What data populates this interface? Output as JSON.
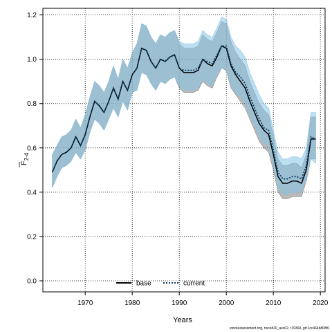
{
  "chart_data": {
    "type": "line",
    "xlabel": "Years",
    "ylabel": "F2-4",
    "ylabel_main": "F",
    "ylabel_sub": "2-4",
    "xlim": [
      1961,
      2021
    ],
    "ylim": [
      -0.05,
      1.23
    ],
    "xticks": [
      1970,
      1980,
      1990,
      2000,
      2010,
      2020
    ],
    "yticks": [
      0.0,
      0.2,
      0.4,
      0.6,
      0.8,
      1.0,
      1.2
    ],
    "ytick_labels": [
      "0.0",
      "0.2",
      "0.4",
      "0.6",
      "0.8",
      "1.0",
      "1.2"
    ],
    "grid": true,
    "legend_position": "bottom-center",
    "x": [
      1963,
      1964,
      1965,
      1966,
      1967,
      1968,
      1969,
      1970,
      1971,
      1972,
      1973,
      1974,
      1975,
      1976,
      1977,
      1978,
      1979,
      1980,
      1981,
      1982,
      1983,
      1984,
      1985,
      1986,
      1987,
      1988,
      1989,
      1990,
      1991,
      1992,
      1993,
      1994,
      1995,
      1996,
      1997,
      1998,
      1999,
      2000,
      2001,
      2002,
      2003,
      2004,
      2005,
      2006,
      2007,
      2008,
      2009,
      2010,
      2011,
      2012,
      2013,
      2014,
      2015,
      2016,
      2017,
      2018,
      2019
    ],
    "series": [
      {
        "name": "base",
        "color": "#000000",
        "line_style": "solid",
        "band_color": "#808080",
        "values": [
          0.49,
          0.54,
          0.57,
          0.58,
          0.6,
          0.65,
          0.61,
          0.66,
          0.74,
          0.81,
          0.79,
          0.76,
          0.81,
          0.87,
          0.82,
          0.9,
          0.86,
          0.93,
          0.96,
          1.05,
          1.04,
          0.99,
          0.96,
          1.0,
          0.99,
          1.01,
          1.02,
          0.96,
          0.94,
          0.94,
          0.94,
          0.95,
          1.0,
          0.98,
          0.97,
          1.01,
          1.06,
          1.05,
          0.97,
          0.93,
          0.9,
          0.87,
          0.81,
          0.76,
          0.71,
          0.68,
          0.66,
          0.57,
          0.47,
          0.44,
          0.44,
          0.45,
          0.45,
          0.44,
          0.5,
          0.64,
          0.64
        ],
        "lower": [
          0.42,
          0.47,
          0.51,
          0.52,
          0.54,
          0.58,
          0.55,
          0.59,
          0.67,
          0.73,
          0.71,
          0.68,
          0.73,
          0.78,
          0.74,
          0.81,
          0.77,
          0.85,
          0.86,
          0.94,
          0.93,
          0.89,
          0.86,
          0.9,
          0.89,
          0.91,
          0.92,
          0.87,
          0.85,
          0.85,
          0.85,
          0.86,
          0.9,
          0.88,
          0.87,
          0.92,
          0.96,
          0.95,
          0.87,
          0.84,
          0.81,
          0.78,
          0.73,
          0.68,
          0.63,
          0.6,
          0.58,
          0.5,
          0.4,
          0.37,
          0.37,
          0.38,
          0.38,
          0.38,
          0.45,
          0.55,
          0.55
        ],
        "upper": [
          0.57,
          0.61,
          0.65,
          0.66,
          0.68,
          0.73,
          0.69,
          0.75,
          0.83,
          0.9,
          0.88,
          0.85,
          0.9,
          0.97,
          0.91,
          1.0,
          0.96,
          1.03,
          1.07,
          1.16,
          1.15,
          1.1,
          1.07,
          1.11,
          1.1,
          1.12,
          1.13,
          1.07,
          1.05,
          1.05,
          1.05,
          1.06,
          1.11,
          1.09,
          1.08,
          1.12,
          1.17,
          1.16,
          1.08,
          1.03,
          1.0,
          0.97,
          0.9,
          0.85,
          0.8,
          0.77,
          0.75,
          0.65,
          0.55,
          0.52,
          0.52,
          0.53,
          0.53,
          0.51,
          0.57,
          0.74,
          0.74
        ]
      },
      {
        "name": "current",
        "color": "#0a3f66",
        "line_style": "dotted",
        "band_color": "#87c4e8",
        "values": [
          0.49,
          0.54,
          0.57,
          0.58,
          0.6,
          0.65,
          0.61,
          0.66,
          0.74,
          0.81,
          0.79,
          0.76,
          0.81,
          0.87,
          0.82,
          0.9,
          0.86,
          0.93,
          0.96,
          1.05,
          1.04,
          0.99,
          0.96,
          1.0,
          0.99,
          1.01,
          1.02,
          0.96,
          0.95,
          0.95,
          0.95,
          0.96,
          1.0,
          0.99,
          0.98,
          1.02,
          1.06,
          1.06,
          0.98,
          0.94,
          0.92,
          0.89,
          0.83,
          0.78,
          0.73,
          0.69,
          0.68,
          0.59,
          0.49,
          0.46,
          0.46,
          0.47,
          0.47,
          0.46,
          0.52,
          0.65,
          0.64
        ],
        "lower": [
          0.42,
          0.47,
          0.51,
          0.52,
          0.54,
          0.58,
          0.55,
          0.59,
          0.67,
          0.73,
          0.71,
          0.68,
          0.73,
          0.78,
          0.74,
          0.81,
          0.77,
          0.85,
          0.86,
          0.94,
          0.93,
          0.89,
          0.86,
          0.9,
          0.89,
          0.91,
          0.92,
          0.88,
          0.86,
          0.86,
          0.86,
          0.87,
          0.91,
          0.89,
          0.88,
          0.93,
          0.96,
          0.96,
          0.88,
          0.85,
          0.83,
          0.8,
          0.75,
          0.7,
          0.65,
          0.62,
          0.61,
          0.52,
          0.42,
          0.39,
          0.39,
          0.4,
          0.4,
          0.4,
          0.46,
          0.55,
          0.53
        ],
        "upper": [
          0.57,
          0.61,
          0.65,
          0.66,
          0.68,
          0.73,
          0.69,
          0.75,
          0.83,
          0.9,
          0.88,
          0.85,
          0.9,
          0.97,
          0.91,
          1.0,
          0.96,
          1.03,
          1.07,
          1.16,
          1.15,
          1.1,
          1.07,
          1.11,
          1.1,
          1.12,
          1.13,
          1.08,
          1.07,
          1.07,
          1.07,
          1.08,
          1.13,
          1.11,
          1.1,
          1.14,
          1.19,
          1.18,
          1.1,
          1.06,
          1.04,
          1.01,
          0.94,
          0.89,
          0.84,
          0.8,
          0.78,
          0.68,
          0.58,
          0.55,
          0.55,
          0.56,
          0.56,
          0.55,
          0.6,
          0.76,
          0.76
        ]
      }
    ]
  },
  "footer_text": "stockassessment.org, nscod20_ass02, r19369, git:1cc464b808f6"
}
